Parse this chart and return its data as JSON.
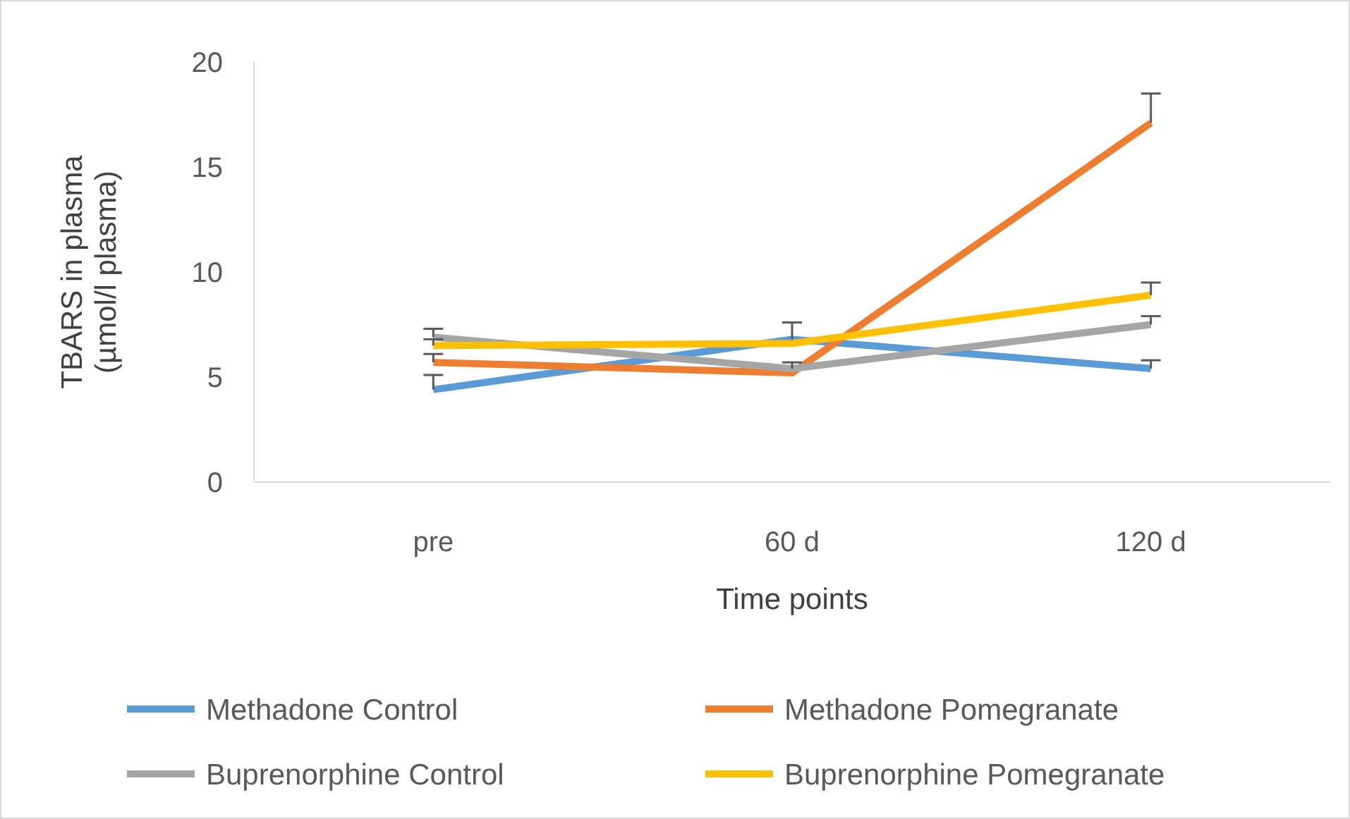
{
  "chart_data": {
    "type": "line",
    "xlabel": "Time points",
    "ylabel": "TBARS in plasma (µmol/l plasma)",
    "categories": [
      "pre",
      "60 d",
      "120 d"
    ],
    "ylim": [
      0,
      20
    ],
    "yticks": [
      0,
      5,
      10,
      15,
      20
    ],
    "grid": false,
    "legend": "bottom",
    "marker": "none",
    "series": [
      {
        "name": "Methadone Control",
        "color": "#5b9bd5",
        "values": [
          4.4,
          6.8,
          5.4
        ],
        "errors": [
          [
            4.4,
            5.1
          ],
          [
            6.8,
            7.6
          ],
          [
            5.4,
            5.8
          ]
        ]
      },
      {
        "name": "Methadone Pomegranate",
        "color": "#ed7d31",
        "values": [
          5.7,
          5.2,
          17.1
        ],
        "errors": [
          [
            5.7,
            6.1
          ],
          null,
          [
            17.1,
            18.5
          ]
        ]
      },
      {
        "name": "Buprenorphine Control",
        "color": "#a5a5a5",
        "values": [
          6.9,
          5.4,
          7.5
        ],
        "errors": [
          [
            6.9,
            7.3
          ],
          [
            5.4,
            5.7
          ],
          [
            7.5,
            7.9
          ]
        ]
      },
      {
        "name": "Buprenorphine Pomegranate",
        "color": "#ffc000",
        "values": [
          6.5,
          6.6,
          8.9
        ],
        "errors": [
          [
            6.5,
            6.8
          ],
          null,
          [
            8.9,
            9.5
          ]
        ]
      }
    ]
  }
}
